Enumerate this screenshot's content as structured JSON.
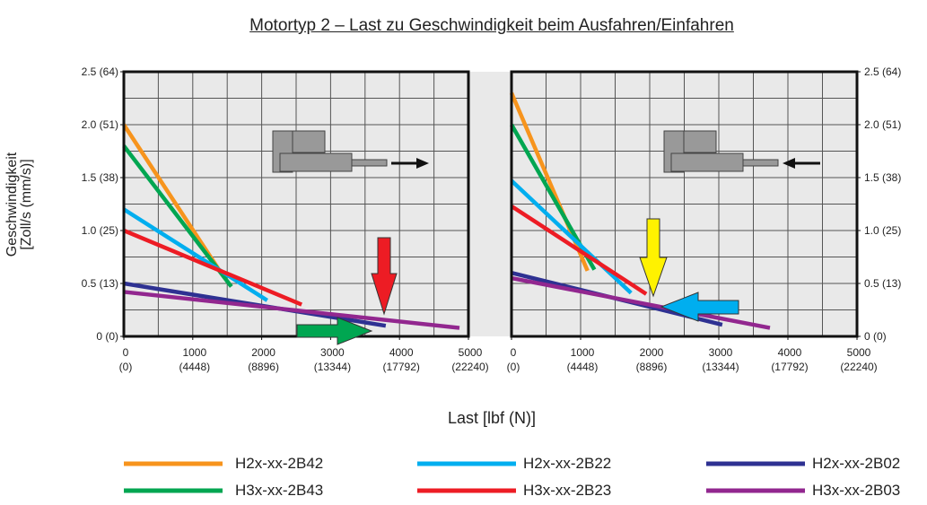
{
  "figure": {
    "title": "Motortyp 2 – Last zu Geschwindigkeit beim Ausfahren/Einfahren",
    "xlabel": "Last [lbf (N)]",
    "ylabel": "Geschwindigkeit\n[Zoll/s (mm/s)]"
  },
  "chart_data": [
    {
      "type": "line",
      "yaxis_side": "left",
      "xlim": [
        0,
        5000
      ],
      "ylim": [
        0,
        2.5
      ],
      "xticks": [
        {
          "value": 0,
          "label": "0\n(0)"
        },
        {
          "value": 1000,
          "label": "1000\n(4448)"
        },
        {
          "value": 2000,
          "label": "2000\n(8896)"
        },
        {
          "value": 3000,
          "label": "3000\n(13344)"
        },
        {
          "value": 4000,
          "label": "4000\n(17792)"
        },
        {
          "value": 5000,
          "label": "5000\n(22240)"
        }
      ],
      "yticks": [
        {
          "value": 0,
          "label": "0 (0)"
        },
        {
          "value": 0.5,
          "label": "0.5 (13)"
        },
        {
          "value": 1.0,
          "label": "1.0 (25)"
        },
        {
          "value": 1.5,
          "label": "1.5 (38)"
        },
        {
          "value": 2.0,
          "label": "2.0 (51)"
        },
        {
          "value": 2.5,
          "label": "2.5 (64)"
        }
      ],
      "xgrid": [
        500,
        1000,
        1500,
        2000,
        2500,
        3000,
        3500,
        4000,
        4500
      ],
      "ygrid": [
        0.25,
        0.5,
        0.75,
        1.0,
        1.25,
        1.5,
        1.75,
        2.0,
        2.25
      ],
      "series": [
        {
          "name": "H2x-xx-2B42",
          "color": "#f7941d",
          "x": [
            0,
            1420
          ],
          "values": [
            2.0,
            0.59
          ]
        },
        {
          "name": "H3x-xx-2B43",
          "color": "#00a651",
          "x": [
            0,
            1560
          ],
          "values": [
            1.8,
            0.47
          ]
        },
        {
          "name": "H2x-xx-2B22",
          "color": "#00aeef",
          "x": [
            0,
            2080
          ],
          "values": [
            1.2,
            0.34
          ]
        },
        {
          "name": "H3x-xx-2B23",
          "color": "#ed1c24",
          "x": [
            0,
            2580
          ],
          "values": [
            1.0,
            0.3
          ]
        },
        {
          "name": "H2x-xx-2B02",
          "color": "#2e3192",
          "x": [
            0,
            3800
          ],
          "values": [
            0.5,
            0.1
          ]
        },
        {
          "name": "H3x-xx-2B03",
          "color": "#92278f",
          "x": [
            0,
            4870
          ],
          "values": [
            0.42,
            0.08
          ]
        }
      ]
    },
    {
      "type": "line",
      "yaxis_side": "right",
      "xlim": [
        0,
        5000
      ],
      "ylim": [
        0,
        2.5
      ],
      "xticks": [
        {
          "value": 0,
          "label": "0\n(0)"
        },
        {
          "value": 1000,
          "label": "1000\n(4448)"
        },
        {
          "value": 2000,
          "label": "2000\n(8896)"
        },
        {
          "value": 3000,
          "label": "3000\n(13344)"
        },
        {
          "value": 4000,
          "label": "4000\n(17792)"
        },
        {
          "value": 5000,
          "label": "5000\n(22240)"
        }
      ],
      "yticks": [
        {
          "value": 0,
          "label": "0 (0)"
        },
        {
          "value": 0.5,
          "label": "0.5 (13)"
        },
        {
          "value": 1.0,
          "label": "1.0 (25)"
        },
        {
          "value": 1.5,
          "label": "1.5 (38)"
        },
        {
          "value": 2.0,
          "label": "2.0 (51)"
        },
        {
          "value": 2.5,
          "label": "2.5 (64)"
        }
      ],
      "xgrid": [
        500,
        1000,
        1500,
        2000,
        2500,
        3000,
        3500,
        4000,
        4500
      ],
      "ygrid": [
        0.25,
        0.5,
        0.75,
        1.0,
        1.25,
        1.5,
        1.75,
        2.0,
        2.25
      ],
      "series": [
        {
          "name": "H2x-xx-2B42",
          "color": "#f7941d",
          "x": [
            0,
            1100
          ],
          "values": [
            2.3,
            0.62
          ]
        },
        {
          "name": "H3x-xx-2B43",
          "color": "#00a651",
          "x": [
            0,
            1200
          ],
          "values": [
            2.0,
            0.63
          ]
        },
        {
          "name": "H2x-xx-2B22",
          "color": "#00aeef",
          "x": [
            0,
            1730
          ],
          "values": [
            1.47,
            0.41
          ]
        },
        {
          "name": "H3x-xx-2B23",
          "color": "#ed1c24",
          "x": [
            0,
            1950
          ],
          "values": [
            1.23,
            0.4
          ]
        },
        {
          "name": "H2x-xx-2B02",
          "color": "#2e3192",
          "x": [
            0,
            3050
          ],
          "values": [
            0.6,
            0.11
          ]
        },
        {
          "name": "H3x-xx-2B03",
          "color": "#92278f",
          "x": [
            0,
            3740
          ],
          "values": [
            0.55,
            0.08
          ]
        }
      ]
    }
  ]
}
